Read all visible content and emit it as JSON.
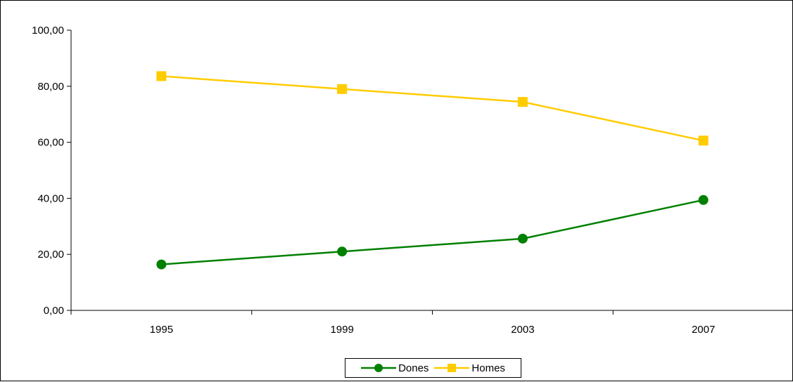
{
  "chart_data": {
    "type": "line",
    "title": "",
    "xlabel": "",
    "ylabel": "",
    "categories": [
      "1995",
      "1999",
      "2003",
      "2007"
    ],
    "ylim": [
      0,
      100
    ],
    "yticks": [
      "0,00",
      "20,00",
      "40,00",
      "60,00",
      "80,00",
      "100,00"
    ],
    "grid": false,
    "legend_position": "bottom",
    "series": [
      {
        "name": "Dones",
        "values": [
          16.4,
          21.0,
          25.6,
          39.4
        ],
        "color": "#008000",
        "marker": "circle"
      },
      {
        "name": "Homes",
        "values": [
          83.6,
          79.0,
          74.4,
          60.6
        ],
        "color": "#FFCC00",
        "marker": "square"
      }
    ]
  }
}
